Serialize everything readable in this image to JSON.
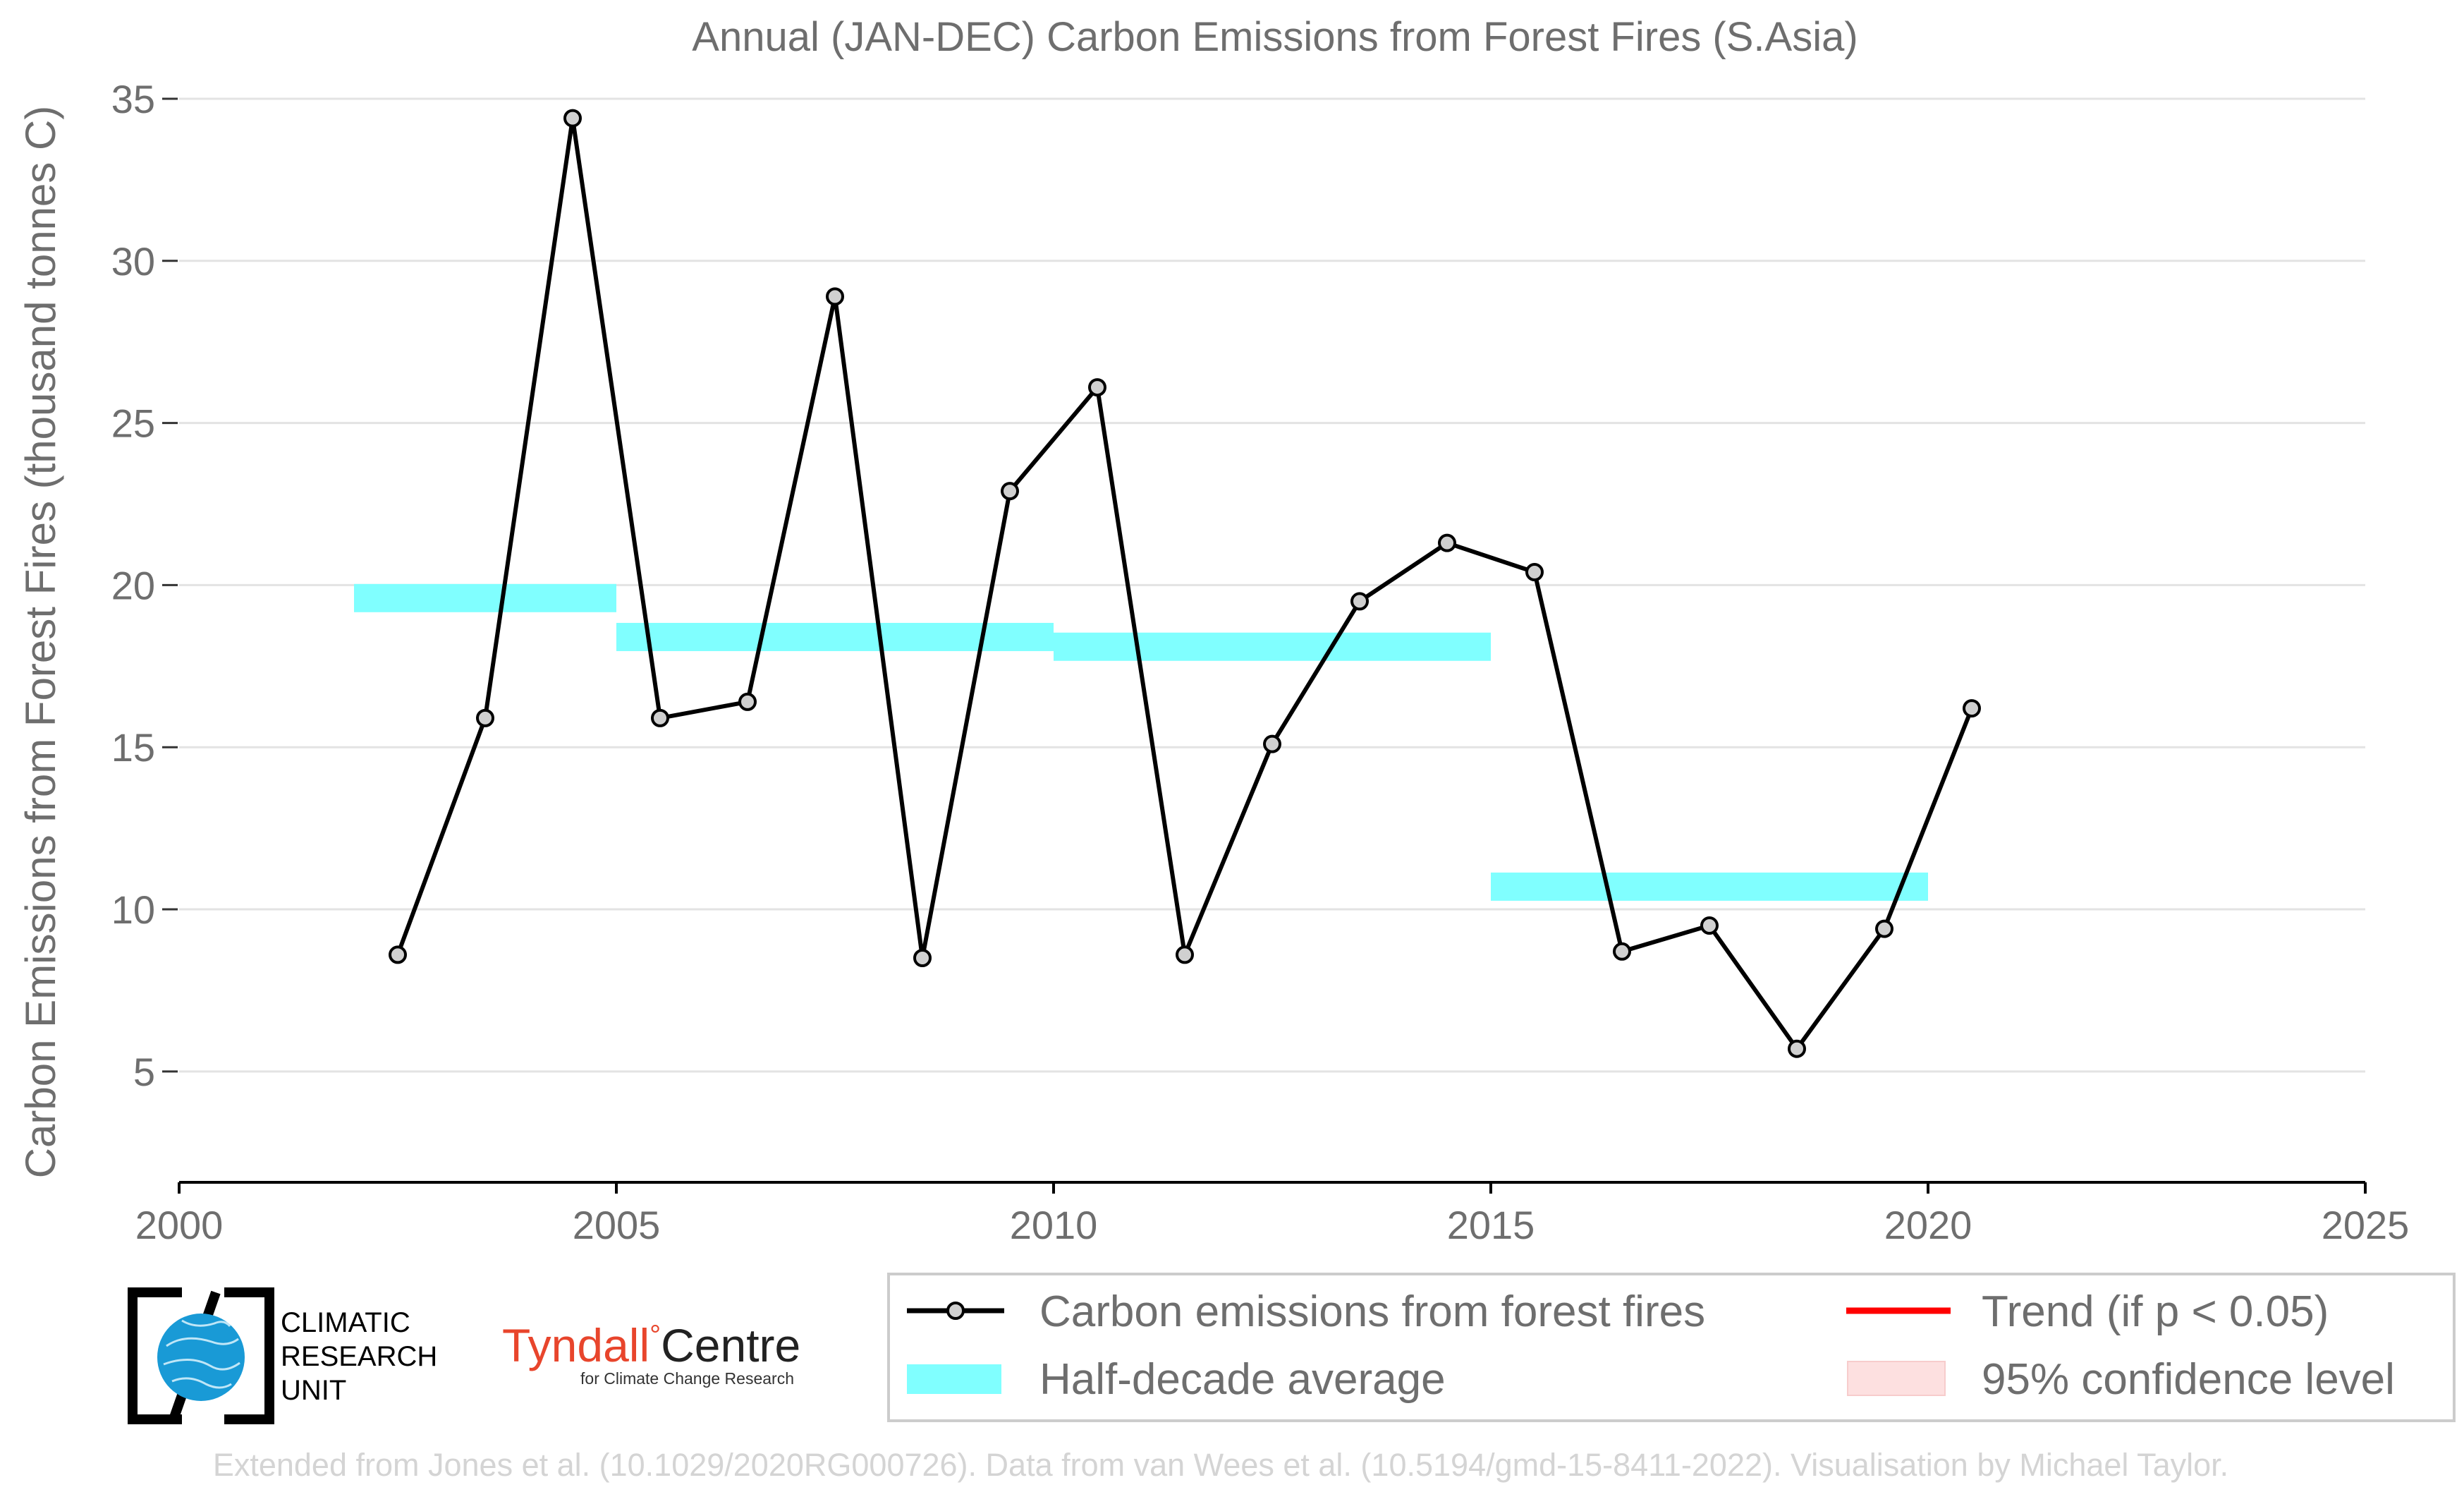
{
  "chart_data": {
    "type": "line",
    "title": "Annual (JAN-DEC) Carbon Emissions from Forest Fires (S.Asia)",
    "xlabel": "",
    "ylabel": "Carbon Emissions from Forest Fires (thousand tonnes C)",
    "xlim": [
      2000,
      2025
    ],
    "ylim": [
      3.3,
      35
    ],
    "xticks": [
      2000,
      2005,
      2010,
      2015,
      2020,
      2025
    ],
    "yticks": [
      5,
      10,
      15,
      20,
      25,
      30,
      35
    ],
    "grid": "horizontal",
    "legend_position": "bottom",
    "series": [
      {
        "name": "Carbon emissions from forest fires",
        "x": [
          2002.5,
          2003.5,
          2004.5,
          2005.5,
          2006.5,
          2007.5,
          2008.5,
          2009.5,
          2010.5,
          2011.5,
          2012.5,
          2013.5,
          2014.5,
          2015.5,
          2016.5,
          2017.5,
          2018.5,
          2019.5,
          2020.5
        ],
        "values": [
          8.6,
          15.9,
          34.4,
          15.9,
          16.4,
          28.9,
          8.5,
          22.9,
          26.1,
          8.6,
          15.1,
          19.5,
          21.3,
          20.4,
          8.7,
          9.5,
          5.7,
          9.4,
          16.2
        ],
        "color": "#000000"
      }
    ],
    "half_decade_average": {
      "name": "Half-decade average",
      "color": "#80ffff",
      "segments": [
        {
          "x_start": 2002,
          "x_end": 2005,
          "value": 19.6
        },
        {
          "x_start": 2005,
          "x_end": 2010,
          "value": 18.4
        },
        {
          "x_start": 2010,
          "x_end": 2015,
          "value": 18.1
        },
        {
          "x_start": 2015,
          "x_end": 2020,
          "value": 10.7
        }
      ]
    },
    "legend": [
      {
        "label": "Carbon emissions from forest fires",
        "kind": "line-marker",
        "color": "#000000"
      },
      {
        "label": "Trend (if p < 0.05)",
        "kind": "line",
        "color": "#ff0000"
      },
      {
        "label": "Half-decade average",
        "kind": "band",
        "color": "#80ffff"
      },
      {
        "label": "95% confidence level",
        "kind": "band",
        "color": "#fde0e0"
      }
    ]
  },
  "logos": {
    "cru": {
      "line1": "CLIMATIC",
      "line2": "RESEARCH",
      "line3": "UNIT"
    },
    "tyndall": {
      "main": "Tyndall",
      "degree": "°",
      "centre": "Centre",
      "sub": "for Climate Change Research",
      "color": "#e8452c"
    }
  },
  "credit": "Extended from Jones et al. (10.1029/2020RG000726). Data from van Wees et al. (10.5194/gmd-15-8411-2022). Visualisation by Michael Taylor."
}
